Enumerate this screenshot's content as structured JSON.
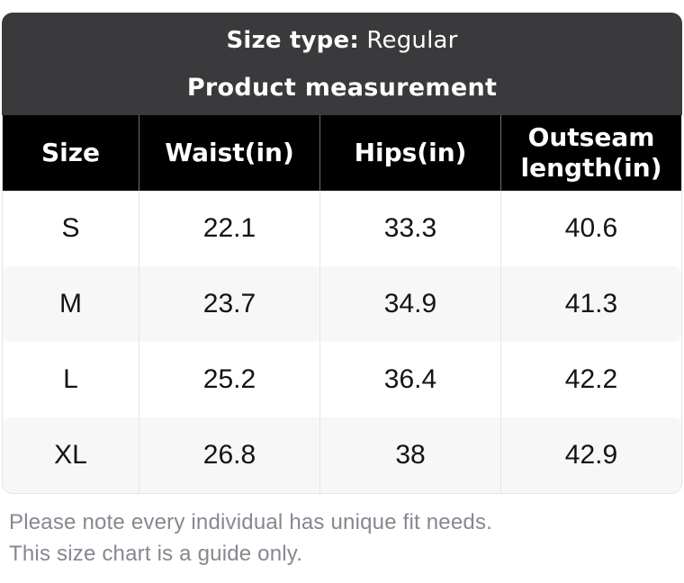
{
  "header": {
    "size_type_label": "Size type:",
    "size_type_value": "Regular",
    "measurement_title": "Product measurement"
  },
  "table": {
    "columns": [
      "Size",
      "Waist(in)",
      "Hips(in)",
      "Outseam length(in)"
    ],
    "rows": [
      [
        "S",
        "22.1",
        "33.3",
        "40.6"
      ],
      [
        "M",
        "23.7",
        "34.9",
        "41.3"
      ],
      [
        "L",
        "25.2",
        "36.4",
        "42.2"
      ],
      [
        "XL",
        "26.8",
        "38",
        "42.9"
      ]
    ]
  },
  "footer": {
    "note_line1": "Please note every individual has unique fit needs.",
    "note_line2": "This size chart is a guide only."
  },
  "colors": {
    "header_background": "#3a3a3c",
    "table_header_background": "#000000",
    "stripe_row_background": "#f7f7f7",
    "note_text": "#85888f",
    "header_text": "#ffffff",
    "body_text": "#141414"
  }
}
